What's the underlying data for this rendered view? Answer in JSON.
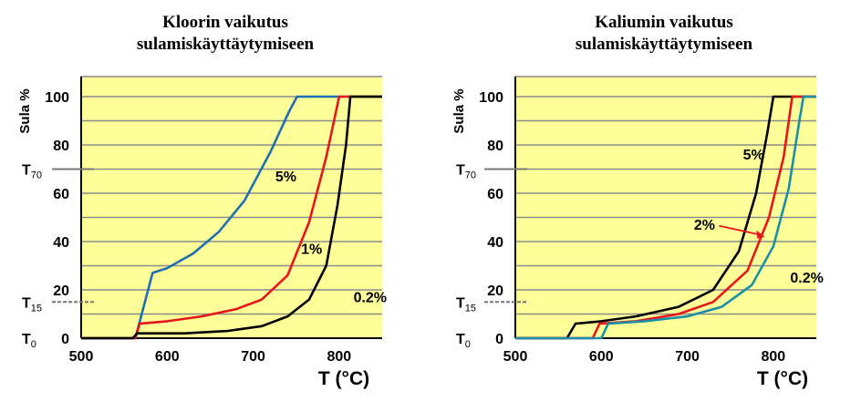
{
  "chart_data": [
    {
      "type": "line",
      "title_line1": "Kloorin vaikutus",
      "title_line2": "sulamiskäyttäytymiseen",
      "ylabel": "Sula %",
      "xlabel": "T (°C)",
      "xlim": [
        500,
        850
      ],
      "ylim": [
        0,
        100
      ],
      "xticks": [
        "500",
        "600",
        "700",
        "800"
      ],
      "yticks": [
        "0",
        "20",
        "40",
        "60",
        "80",
        "100"
      ],
      "grid": true,
      "background": "#FFFF99",
      "markers": [
        {
          "label": "T",
          "sub": "70",
          "y": 70
        },
        {
          "label": "T",
          "sub": "15",
          "y": 15
        },
        {
          "label": "T",
          "sub": "0",
          "y": 0
        }
      ],
      "series": [
        {
          "name": "5%",
          "label_at": [
            738,
            65
          ],
          "color": "#1F6FB5",
          "points": [
            [
              500,
              0
            ],
            [
              563,
              0
            ],
            [
              583,
              27
            ],
            [
              600,
              29
            ],
            [
              630,
              35
            ],
            [
              660,
              44
            ],
            [
              690,
              57
            ],
            [
              720,
              77
            ],
            [
              742,
              94
            ],
            [
              751,
              100
            ],
            [
              850,
              100
            ]
          ]
        },
        {
          "name": "1%",
          "label_at": [
            768,
            35
          ],
          "color": "#E8141B",
          "points": [
            [
              500,
              0
            ],
            [
              563,
              0
            ],
            [
              568,
              6
            ],
            [
              600,
              7
            ],
            [
              640,
              9
            ],
            [
              680,
              12
            ],
            [
              710,
              16
            ],
            [
              740,
              26
            ],
            [
              765,
              48
            ],
            [
              785,
              75
            ],
            [
              800,
              100
            ],
            [
              850,
              100
            ]
          ]
        },
        {
          "name": "0.2%",
          "label_at": [
            836,
            15
          ],
          "color": "#000000",
          "points": [
            [
              500,
              0
            ],
            [
              560,
              0
            ],
            [
              565,
              2
            ],
            [
              620,
              2
            ],
            [
              670,
              3
            ],
            [
              710,
              5
            ],
            [
              740,
              9
            ],
            [
              765,
              16
            ],
            [
              785,
              30
            ],
            [
              798,
              55
            ],
            [
              808,
              80
            ],
            [
              813,
              100
            ],
            [
              850,
              100
            ]
          ]
        }
      ]
    },
    {
      "type": "line",
      "title_line1": "Kaliumin vaikutus",
      "title_line2": "sulamiskäyttäytymiseen",
      "ylabel": "Sula %",
      "xlabel": "T (°C)",
      "xlim": [
        500,
        850
      ],
      "ylim": [
        0,
        100
      ],
      "xticks": [
        "500",
        "600",
        "700",
        "800"
      ],
      "yticks": [
        "0",
        "20",
        "40",
        "60",
        "80",
        "100"
      ],
      "grid": true,
      "background": "#FFFF99",
      "markers": [
        {
          "label": "T",
          "sub": "70",
          "y": 70
        },
        {
          "label": "T",
          "sub": "15",
          "y": 15
        },
        {
          "label": "T",
          "sub": "0",
          "y": 0
        }
      ],
      "series": [
        {
          "name": "5%",
          "label_at": [
            777,
            74
          ],
          "color": "#000000",
          "points": [
            [
              500,
              0
            ],
            [
              560,
              0
            ],
            [
              570,
              6
            ],
            [
              600,
              7
            ],
            [
              640,
              9
            ],
            [
              690,
              13
            ],
            [
              730,
              20
            ],
            [
              760,
              36
            ],
            [
              780,
              60
            ],
            [
              793,
              85
            ],
            [
              800,
              100
            ],
            [
              850,
              100
            ]
          ]
        },
        {
          "name": "2%",
          "label_at": [
            720,
            45
          ],
          "color": "#E8141B",
          "arrow_to": [
            790,
            42
          ],
          "points": [
            [
              500,
              0
            ],
            [
              590,
              0
            ],
            [
              598,
              6
            ],
            [
              640,
              7
            ],
            [
              690,
              10
            ],
            [
              730,
              15
            ],
            [
              770,
              28
            ],
            [
              795,
              50
            ],
            [
              812,
              75
            ],
            [
              822,
              100
            ],
            [
              850,
              100
            ]
          ]
        },
        {
          "name": "0.2%",
          "label_at": [
            839,
            23
          ],
          "color": "#1A8FA8",
          "points": [
            [
              500,
              0
            ],
            [
              600,
              0
            ],
            [
              608,
              6
            ],
            [
              650,
              7
            ],
            [
              700,
              9
            ],
            [
              740,
              13
            ],
            [
              775,
              22
            ],
            [
              800,
              38
            ],
            [
              818,
              62
            ],
            [
              829,
              87
            ],
            [
              835,
              100
            ],
            [
              850,
              100
            ]
          ]
        }
      ]
    }
  ]
}
